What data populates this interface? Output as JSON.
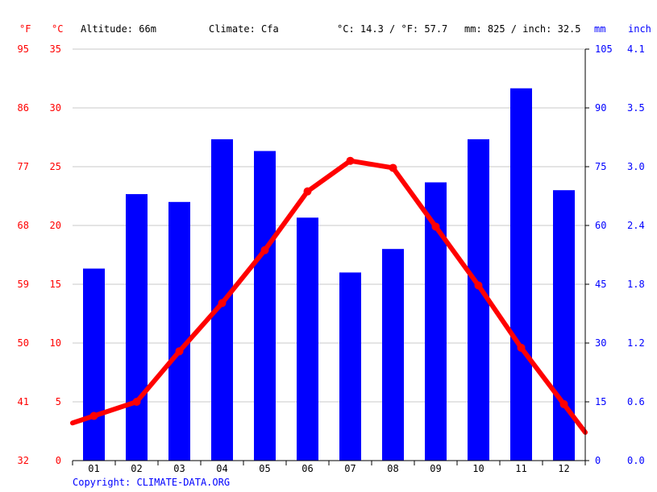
{
  "header": {
    "unit_f": "°F",
    "unit_c": "°C",
    "altitude": "Altitude: 66m",
    "climate": "Climate: Cfa",
    "avg_temp": "°C: 14.3 / °F: 57.7",
    "precip_total": "mm: 825 / inch: 32.5",
    "unit_mm": "mm",
    "unit_inch": "inch"
  },
  "copyright": "Copyright: CLIMATE-DATA.ORG",
  "colors": {
    "temperature": "#ff0000",
    "precipitation": "#0000ff",
    "grid": "#c8c8c8",
    "axis": "#000000"
  },
  "chart_data": {
    "type": "bar",
    "categories": [
      "01",
      "02",
      "03",
      "04",
      "05",
      "06",
      "07",
      "08",
      "09",
      "10",
      "11",
      "12"
    ],
    "series": [
      {
        "kind": "bar",
        "axis": "right-mm",
        "values": [
          49,
          68,
          66,
          82,
          79,
          62,
          48,
          54,
          71,
          82,
          95,
          69
        ]
      },
      {
        "kind": "line",
        "axis": "left-c",
        "values": [
          3.8,
          5.0,
          9.3,
          13.4,
          17.9,
          22.9,
          25.5,
          24.9,
          19.9,
          14.9,
          9.6,
          4.8
        ]
      }
    ],
    "axes": {
      "left_f": {
        "ticks": [
          "95",
          "86",
          "77",
          "68",
          "59",
          "50",
          "41",
          "32"
        ]
      },
      "left_c": {
        "ticks": [
          "35",
          "30",
          "25",
          "20",
          "15",
          "10",
          "5",
          "0"
        ],
        "ylim": [
          0,
          35
        ]
      },
      "right_mm": {
        "ticks": [
          "105",
          "90",
          "75",
          "60",
          "45",
          "30",
          "15",
          "0"
        ],
        "ylim": [
          0,
          105
        ]
      },
      "right_inch": {
        "ticks": [
          "4.1",
          "3.5",
          "3.0",
          "2.4",
          "1.8",
          "1.2",
          "0.6",
          "0.0"
        ]
      }
    },
    "grid": true,
    "legend": "none"
  }
}
